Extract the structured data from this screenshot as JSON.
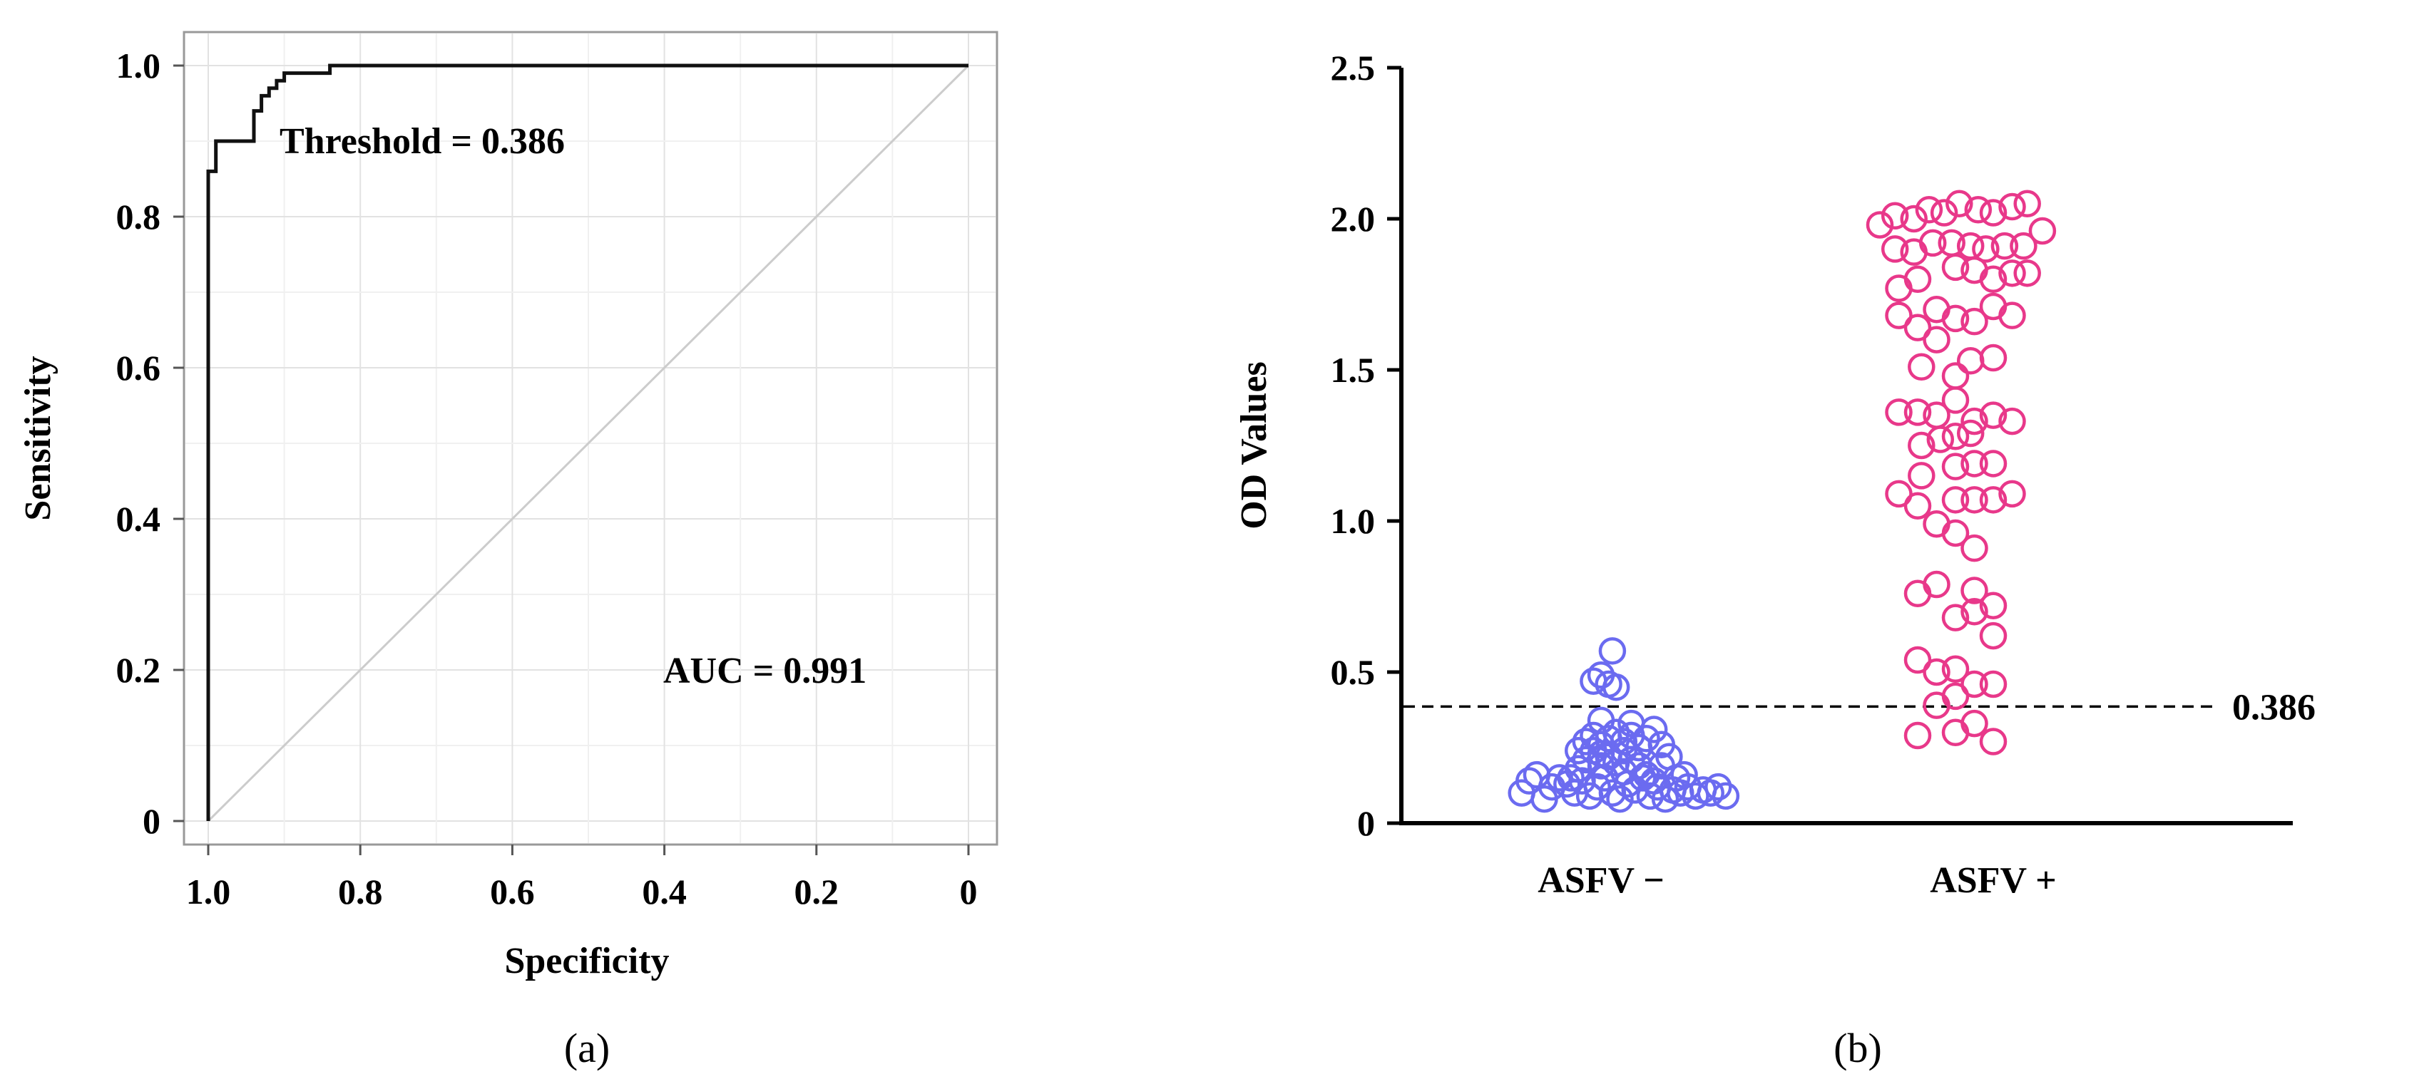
{
  "chart_data": [
    {
      "type": "line",
      "panel_label": "(a)",
      "xlabel": "Specificity",
      "ylabel": "Sensitivity",
      "xlim": [
        1.0,
        0
      ],
      "ylim": [
        0,
        1.0
      ],
      "x_ticks": [
        "1.0",
        "0.8",
        "0.6",
        "0.4",
        "0.2",
        "0"
      ],
      "y_ticks": [
        "0",
        "0.2",
        "0.4",
        "0.6",
        "0.8",
        "1.0"
      ],
      "grid": true,
      "annotations": {
        "threshold": "Threshold = 0.386",
        "auc": "AUC = 0.991"
      },
      "series": [
        {
          "name": "ROC",
          "x": [
            1.0,
            1.0,
            0.99,
            0.99,
            0.98,
            0.98,
            0.94,
            0.94,
            0.93,
            0.93,
            0.92,
            0.92,
            0.91,
            0.91,
            0.9,
            0.9,
            0.88,
            0.88,
            0.84,
            0.84,
            0.0
          ],
          "y": [
            0.0,
            0.86,
            0.86,
            0.9,
            0.9,
            0.9,
            0.9,
            0.94,
            0.94,
            0.96,
            0.96,
            0.97,
            0.97,
            0.98,
            0.98,
            0.99,
            0.99,
            0.99,
            0.99,
            1.0,
            1.0
          ]
        },
        {
          "name": "reference",
          "x": [
            1.0,
            0.0
          ],
          "y": [
            0.0,
            1.0
          ]
        }
      ]
    },
    {
      "type": "scatter",
      "panel_label": "(b)",
      "xlabel": "",
      "ylabel": "OD Values",
      "ylim": [
        0,
        2.5
      ],
      "y_ticks": [
        "0",
        "0.5",
        "1.0",
        "1.5",
        "2.0",
        "2.5"
      ],
      "categories": [
        "ASFV −",
        "ASFV +"
      ],
      "cutoff": {
        "value": 0.386,
        "label": "0.386"
      },
      "series": [
        {
          "name": "ASFV −",
          "color": "#6b6bf0",
          "points": [
            [
              -0.21,
              0.1
            ],
            [
              -0.19,
              0.14
            ],
            [
              -0.17,
              0.16
            ],
            [
              -0.15,
              0.08
            ],
            [
              -0.13,
              0.12
            ],
            [
              -0.11,
              0.15
            ],
            [
              -0.09,
              0.13
            ],
            [
              -0.07,
              0.1
            ],
            [
              -0.05,
              0.14
            ],
            [
              -0.03,
              0.09
            ],
            [
              -0.01,
              0.12
            ],
            [
              0.01,
              0.15
            ],
            [
              0.03,
              0.1
            ],
            [
              0.05,
              0.08
            ],
            [
              0.07,
              0.13
            ],
            [
              0.09,
              0.11
            ],
            [
              0.11,
              0.15
            ],
            [
              0.13,
              0.09
            ],
            [
              0.15,
              0.12
            ],
            [
              0.17,
              0.08
            ],
            [
              0.19,
              0.11
            ],
            [
              0.21,
              0.1
            ],
            [
              0.23,
              0.12
            ],
            [
              0.25,
              0.09
            ],
            [
              0.27,
              0.11
            ],
            [
              0.29,
              0.1
            ],
            [
              0.31,
              0.12
            ],
            [
              0.33,
              0.09
            ],
            [
              -0.06,
              0.18
            ],
            [
              -0.04,
              0.21
            ],
            [
              -0.02,
              0.24
            ],
            [
              0.0,
              0.19
            ],
            [
              0.02,
              0.22
            ],
            [
              0.04,
              0.2
            ],
            [
              0.06,
              0.17
            ],
            [
              0.08,
              0.21
            ],
            [
              0.1,
              0.19
            ],
            [
              0.12,
              0.16
            ],
            [
              -0.08,
              0.15
            ],
            [
              0.14,
              0.14
            ],
            [
              -0.04,
              0.27
            ],
            [
              -0.02,
              0.29
            ],
            [
              0.0,
              0.26
            ],
            [
              0.02,
              0.28
            ],
            [
              0.04,
              0.3
            ],
            [
              0.06,
              0.27
            ],
            [
              0.08,
              0.29
            ],
            [
              0.1,
              0.25
            ],
            [
              0.12,
              0.28
            ],
            [
              0.14,
              0.31
            ],
            [
              0.16,
              0.26
            ],
            [
              -0.06,
              0.24
            ],
            [
              0.0,
              0.23
            ],
            [
              0.06,
              0.24
            ],
            [
              0.18,
              0.22
            ],
            [
              0.16,
              0.19
            ],
            [
              0.2,
              0.15
            ],
            [
              0.22,
              0.16
            ],
            [
              0.0,
              0.34
            ],
            [
              0.08,
              0.33
            ],
            [
              -0.02,
              0.47
            ],
            [
              0.0,
              0.49
            ],
            [
              0.02,
              0.46
            ],
            [
              0.04,
              0.45
            ],
            [
              0.03,
              0.57
            ]
          ]
        },
        {
          "name": "ASFV +",
          "color": "#e8388a",
          "points": [
            [
              -0.3,
              1.98
            ],
            [
              -0.26,
              2.01
            ],
            [
              -0.21,
              2.0
            ],
            [
              -0.17,
              2.03
            ],
            [
              -0.13,
              2.02
            ],
            [
              -0.09,
              2.05
            ],
            [
              -0.04,
              2.03
            ],
            [
              0.0,
              2.02
            ],
            [
              0.05,
              2.04
            ],
            [
              0.09,
              2.05
            ],
            [
              0.13,
              1.96
            ],
            [
              -0.26,
              1.9
            ],
            [
              -0.21,
              1.89
            ],
            [
              -0.16,
              1.92
            ],
            [
              -0.11,
              1.92
            ],
            [
              -0.06,
              1.91
            ],
            [
              -0.02,
              1.9
            ],
            [
              0.03,
              1.91
            ],
            [
              0.08,
              1.91
            ],
            [
              -0.25,
              1.77
            ],
            [
              -0.2,
              1.8
            ],
            [
              -0.1,
              1.84
            ],
            [
              -0.05,
              1.83
            ],
            [
              0.0,
              1.8
            ],
            [
              0.05,
              1.82
            ],
            [
              0.09,
              1.82
            ],
            [
              -0.25,
              1.68
            ],
            [
              -0.2,
              1.64
            ],
            [
              -0.15,
              1.7
            ],
            [
              -0.1,
              1.67
            ],
            [
              -0.05,
              1.66
            ],
            [
              0.0,
              1.71
            ],
            [
              0.05,
              1.68
            ],
            [
              -0.15,
              1.6
            ],
            [
              -0.19,
              1.51
            ],
            [
              -0.06,
              1.53
            ],
            [
              0.0,
              1.54
            ],
            [
              -0.1,
              1.48
            ],
            [
              -0.25,
              1.36
            ],
            [
              -0.2,
              1.36
            ],
            [
              -0.15,
              1.35
            ],
            [
              -0.1,
              1.4
            ],
            [
              -0.05,
              1.33
            ],
            [
              0.0,
              1.35
            ],
            [
              0.05,
              1.33
            ],
            [
              -0.19,
              1.25
            ],
            [
              -0.14,
              1.27
            ],
            [
              -0.1,
              1.28
            ],
            [
              -0.06,
              1.29
            ],
            [
              -0.19,
              1.15
            ],
            [
              -0.1,
              1.18
            ],
            [
              -0.05,
              1.19
            ],
            [
              0.0,
              1.19
            ],
            [
              -0.25,
              1.09
            ],
            [
              -0.2,
              1.05
            ],
            [
              -0.1,
              1.07
            ],
            [
              -0.05,
              1.07
            ],
            [
              0.0,
              1.07
            ],
            [
              0.05,
              1.09
            ],
            [
              -0.15,
              0.99
            ],
            [
              -0.1,
              0.96
            ],
            [
              -0.05,
              0.91
            ],
            [
              -0.2,
              0.76
            ],
            [
              -0.15,
              0.79
            ],
            [
              -0.05,
              0.77
            ],
            [
              -0.1,
              0.68
            ],
            [
              -0.05,
              0.7
            ],
            [
              0.0,
              0.72
            ],
            [
              0.0,
              0.62
            ],
            [
              -0.2,
              0.54
            ],
            [
              -0.15,
              0.5
            ],
            [
              -0.1,
              0.51
            ],
            [
              -0.05,
              0.46
            ],
            [
              0.0,
              0.46
            ],
            [
              -0.15,
              0.39
            ],
            [
              -0.1,
              0.42
            ],
            [
              -0.2,
              0.29
            ],
            [
              -0.1,
              0.3
            ],
            [
              -0.05,
              0.33
            ],
            [
              0.0,
              0.27
            ]
          ]
        }
      ]
    }
  ]
}
